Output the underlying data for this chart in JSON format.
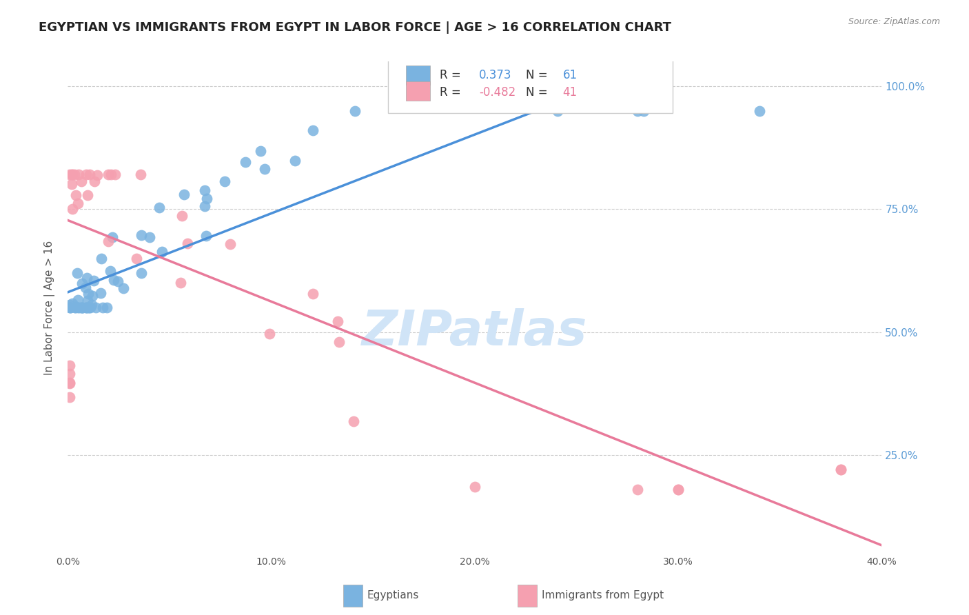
{
  "title": "EGYPTIAN VS IMMIGRANTS FROM EGYPT IN LABOR FORCE | AGE > 16 CORRELATION CHART",
  "source": "Source: ZipAtlas.com",
  "ylabel": "In Labor Force | Age > 16",
  "yticks": [
    "100.0%",
    "75.0%",
    "50.0%",
    "25.0%"
  ],
  "ytick_vals": [
    1.0,
    0.75,
    0.5,
    0.25
  ],
  "xlim": [
    0.0,
    0.4
  ],
  "ylim": [
    0.05,
    1.05
  ],
  "r_egyptian": 0.373,
  "n_egyptian": 61,
  "r_immigrant": -0.482,
  "n_immigrant": 41,
  "background_color": "#ffffff",
  "grid_color": "#cccccc",
  "blue_color": "#7ab3e0",
  "pink_color": "#f5a0b0",
  "blue_line_color": "#4a90d9",
  "pink_line_color": "#e87a9a",
  "right_axis_color": "#5b9bd5",
  "watermark_color": "#d0e4f7"
}
